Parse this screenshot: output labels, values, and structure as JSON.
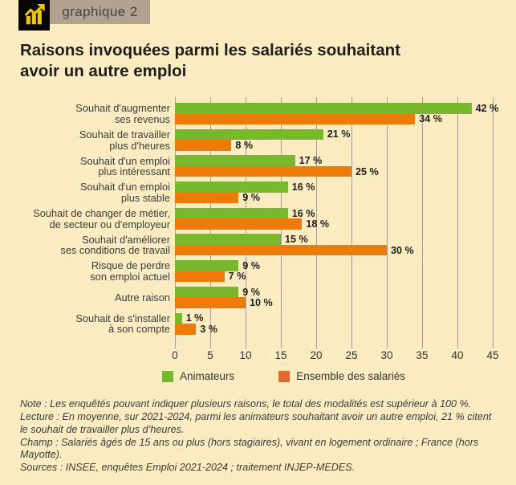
{
  "header": {
    "badge_label": "graphique 2",
    "icon": "bar-chart-up-icon",
    "icon_bg": "#060606",
    "icon_color": "#edc500",
    "badge_bg": "#b2a391"
  },
  "title_lines": {
    "0": "Raisons invoquées parmi les salariés souhaitant",
    "1": "avoir un autre emploi"
  },
  "chart_data": {
    "type": "bar",
    "orientation": "horizontal",
    "title": "Raisons invoquées parmi les salariés souhaitant avoir un autre emploi",
    "categories": [
      [
        "Souhait d'augmenter",
        "ses revenus"
      ],
      [
        "Souhait de travailler",
        "plus d'heures"
      ],
      [
        "Souhait d'un emploi",
        "plus intéressant"
      ],
      [
        "Souhait d'un emploi",
        "plus stable"
      ],
      [
        "Souhait de changer de métier,",
        "de secteur ou d'employeur"
      ],
      [
        "Souhait d'améliorer",
        "ses conditions de travail"
      ],
      [
        "Risque de perdre",
        "son emploi actuel"
      ],
      [
        "Autre raison"
      ],
      [
        "Souhait de s'installer",
        "à son compte"
      ]
    ],
    "series": [
      {
        "name": "Animateurs",
        "color": "#77b82c",
        "legend_color": "#77b82c",
        "values": [
          42,
          21,
          17,
          16,
          16,
          15,
          9,
          9,
          1
        ]
      },
      {
        "name": "Ensemble des salariés",
        "color": "#ed7c0a",
        "legend_color": "#e5692e",
        "values": [
          34,
          8,
          25,
          9,
          18,
          30,
          7,
          10,
          3
        ]
      }
    ],
    "value_suffix": " %",
    "xlim": [
      0,
      45
    ],
    "xticks": [
      0,
      5,
      10,
      15,
      20,
      25,
      30,
      35,
      40,
      45
    ],
    "grid": "vertical",
    "legend_position": "bottom"
  },
  "notes": [
    "Note : Les enquêtés pouvant indiquer plusieurs raisons, le total des modalités est supérieur à 100 %.",
    "Lecture : En moyenne, sur 2021-2024, parmi les animateurs souhaitant avoir un autre emploi, 21 % citent le souhait de travailler plus d’heures.",
    "Champ : Salariés âgés de 15 ans ou plus (hors stagiaires), vivant en logement ordinaire ; France (hors Mayotte).",
    "Sources : INSEE, enquêtes Emploi 2021-2024 ; traitement INJEP-MEDES."
  ],
  "colors": {
    "background": "#fcecc2",
    "gridline": "#a79d8c",
    "title_text": "#1d1d1a",
    "label_text": "#3a3a37"
  }
}
